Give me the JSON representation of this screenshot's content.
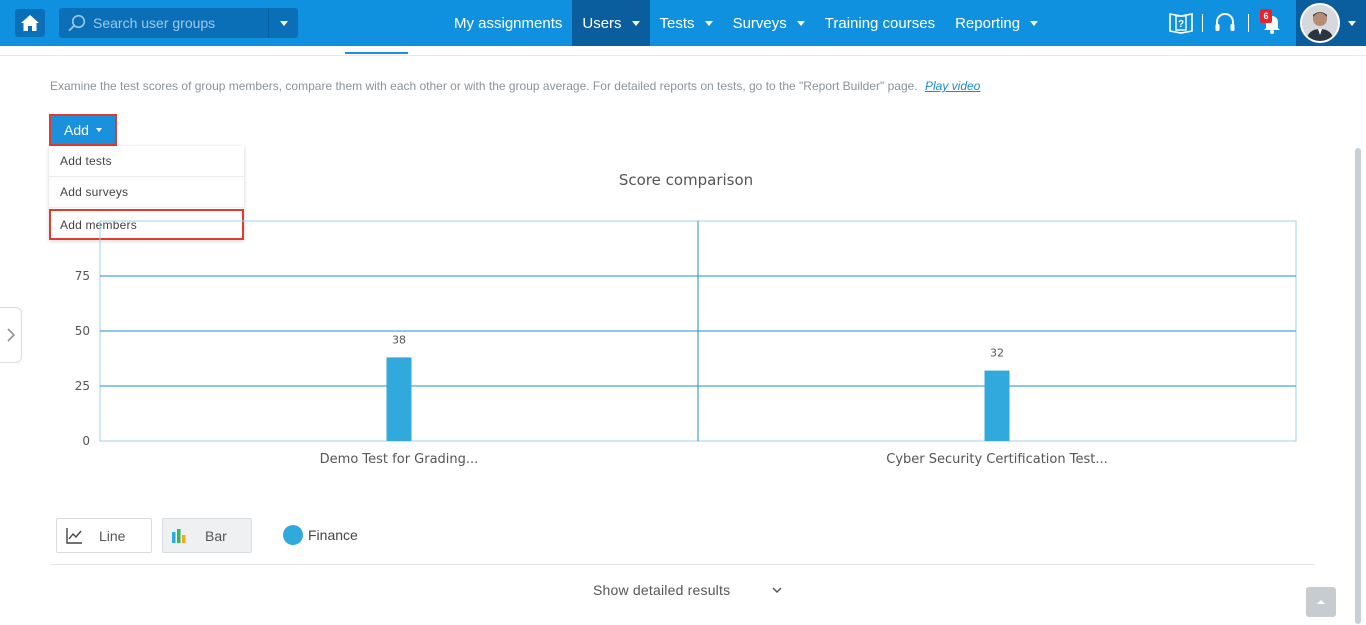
{
  "topbar": {
    "search_placeholder": "Search user groups",
    "nav": [
      {
        "label": "My assignments",
        "has_caret": false,
        "active": false
      },
      {
        "label": "Users",
        "has_caret": true,
        "active": true
      },
      {
        "label": "Tests",
        "has_caret": true,
        "active": false
      },
      {
        "label": "Surveys",
        "has_caret": true,
        "active": false
      },
      {
        "label": "Training courses",
        "has_caret": false,
        "active": false
      },
      {
        "label": "Reporting",
        "has_caret": true,
        "active": false
      }
    ],
    "notification_count": "6",
    "icons": [
      "home-icon",
      "search-icon",
      "help-book-icon",
      "headset-icon",
      "bell-icon",
      "avatar"
    ]
  },
  "intro": {
    "text": "Examine the test scores of group members, compare them with each other or with the group average. For detailed reports on tests, go to the \"Report Builder\" page.",
    "link": "Play video"
  },
  "add_menu": {
    "button_label": "Add",
    "items": [
      "Add tests",
      "Add surveys",
      "Add members"
    ]
  },
  "chart_title": "Score comparison",
  "chart_data": {
    "type": "bar",
    "title": "Score comparison",
    "categories": [
      "Demo Test for Grading...",
      "Cyber Security Certification Test..."
    ],
    "series": [
      {
        "name": "Finance",
        "values": [
          38,
          32
        ]
      }
    ],
    "yticks": [
      0,
      25,
      50,
      75
    ],
    "ylim": [
      0,
      100
    ],
    "grid": true,
    "bar_color": "#32a9dc",
    "grid_color": "#1f8fcf",
    "legend_position": "bottom-left"
  },
  "controls": {
    "line_label": "Line",
    "bar_label": "Bar",
    "legend_label": "Finance",
    "details_label": "Show detailed results"
  },
  "colors": {
    "topbar": "#0f91e0",
    "active_nav": "#0b5e9d",
    "accent": "#1a91dc",
    "highlight": "#e03b33",
    "badge": "#e8232c"
  }
}
